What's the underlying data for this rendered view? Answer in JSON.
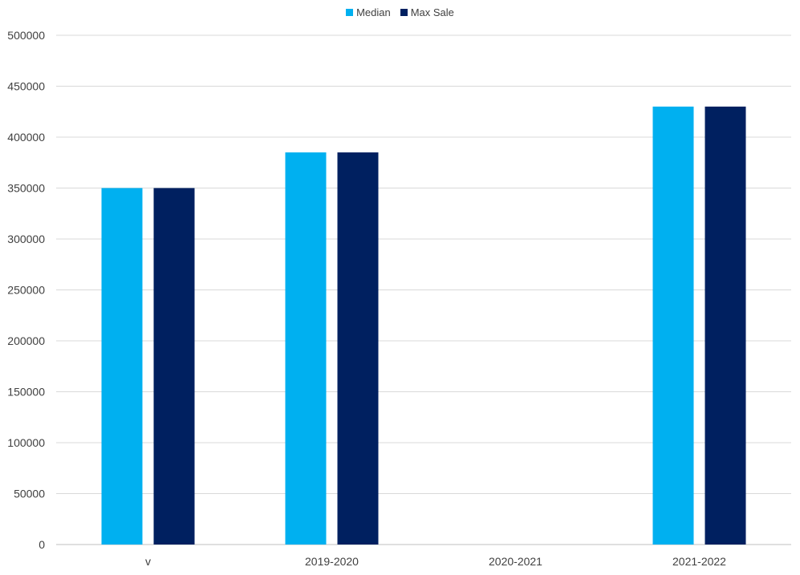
{
  "chart_data": {
    "type": "bar",
    "categories": [
      "v",
      "2019-2020",
      "2020-2021",
      "2021-2022"
    ],
    "series": [
      {
        "name": "Median",
        "color": "#00B0F0",
        "values": [
          350000,
          385000,
          null,
          430000
        ]
      },
      {
        "name": "Max Sale",
        "color": "#002060",
        "values": [
          350000,
          385000,
          null,
          430000
        ]
      }
    ],
    "title": "",
    "xlabel": "",
    "ylabel": "",
    "ylim": [
      0,
      500000
    ],
    "yticks": [
      0,
      50000,
      100000,
      150000,
      200000,
      250000,
      300000,
      350000,
      400000,
      450000,
      500000
    ],
    "grid": true,
    "legend_position": "top-center"
  }
}
